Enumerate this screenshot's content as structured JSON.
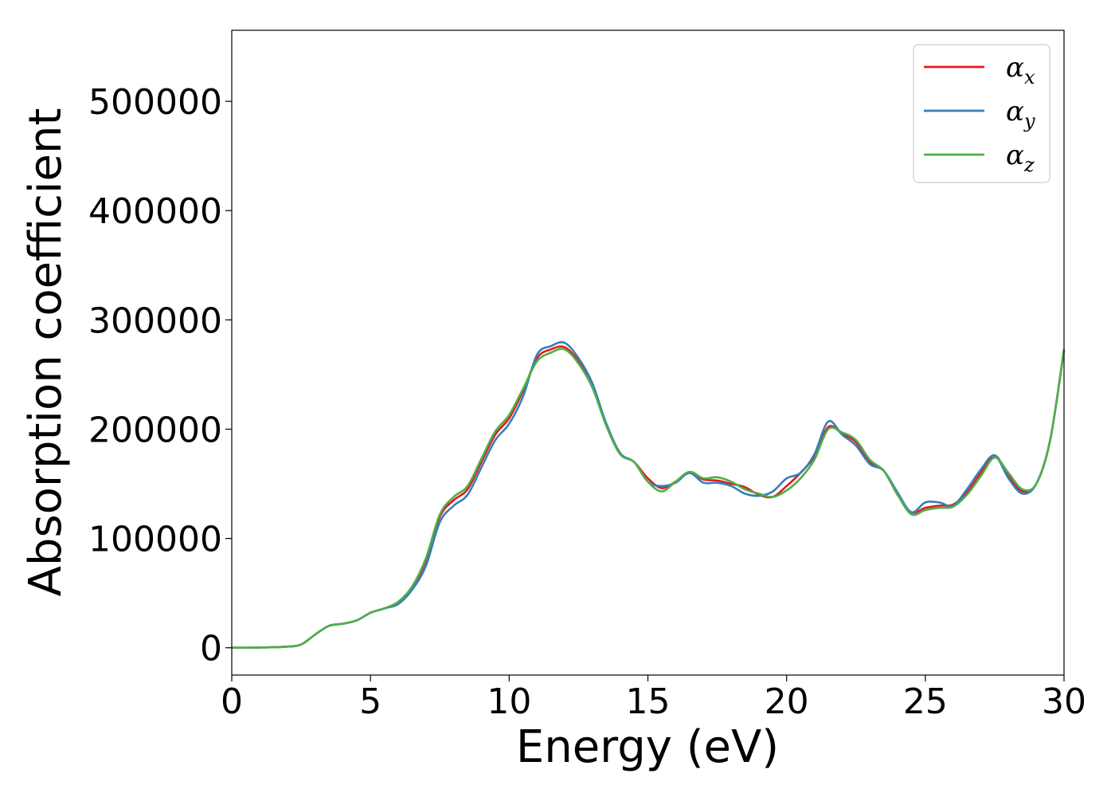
{
  "chart_data": {
    "type": "line",
    "xlabel": "Energy (eV)",
    "ylabel": "Absorption coefficient",
    "xlim": [
      0,
      30
    ],
    "ylim": [
      -25000,
      565000
    ],
    "xticks": [
      0,
      5,
      10,
      15,
      20,
      25,
      30
    ],
    "yticks": [
      0,
      100000,
      200000,
      300000,
      400000,
      500000
    ],
    "grid": false,
    "legend_position": "top-right",
    "x": [
      0,
      1,
      2,
      2.5,
      3,
      3.5,
      4,
      4.5,
      5,
      5.5,
      6,
      6.5,
      7,
      7.5,
      8,
      8.5,
      9,
      9.5,
      10,
      10.5,
      11,
      11.5,
      12,
      12.5,
      13,
      13.5,
      14,
      14.5,
      15,
      15.5,
      16,
      16.5,
      17,
      17.5,
      18,
      18.5,
      19,
      19.5,
      20,
      20.5,
      21,
      21.5,
      22,
      22.5,
      23,
      23.5,
      24,
      24.5,
      25,
      25.5,
      26,
      26.5,
      27,
      27.5,
      28,
      28.5,
      29,
      29.5,
      30
    ],
    "series": [
      {
        "name": "α",
        "subscript": "x",
        "color": "#e41a1c",
        "values": [
          0,
          200,
          1000,
          3000,
          12000,
          20000,
          22000,
          25000,
          32000,
          36000,
          42000,
          55000,
          80000,
          120000,
          135000,
          145000,
          170000,
          195000,
          210000,
          235000,
          265000,
          273000,
          275000,
          262000,
          240000,
          205000,
          178000,
          170000,
          155000,
          146000,
          152000,
          160000,
          154000,
          153000,
          150000,
          147000,
          140000,
          138000,
          148000,
          160000,
          175000,
          202000,
          196000,
          188000,
          170000,
          162000,
          140000,
          124000,
          128000,
          130000,
          131000,
          142000,
          160000,
          176000,
          157000,
          143000,
          150000,
          190000,
          273000
        ]
      },
      {
        "name": "α",
        "subscript": "y",
        "color": "#377eb8",
        "values": [
          0,
          200,
          1000,
          3000,
          12000,
          20000,
          22000,
          25000,
          32000,
          36000,
          40000,
          53000,
          75000,
          115000,
          130000,
          140000,
          165000,
          190000,
          205000,
          230000,
          268000,
          276000,
          279000,
          265000,
          242000,
          205000,
          178000,
          170000,
          152000,
          148000,
          151000,
          160000,
          151000,
          151000,
          148000,
          141000,
          139000,
          143000,
          155000,
          160000,
          177000,
          207000,
          195000,
          185000,
          168000,
          162000,
          142000,
          124000,
          133000,
          133000,
          130000,
          145000,
          163000,
          176000,
          155000,
          141000,
          150000,
          190000,
          273000
        ]
      },
      {
        "name": "α",
        "subscript": "z",
        "color": "#4daf4a",
        "values": [
          0,
          200,
          1000,
          3000,
          12000,
          20000,
          22000,
          25000,
          32000,
          36000,
          42000,
          56000,
          82000,
          122000,
          138000,
          148000,
          173000,
          198000,
          213000,
          237000,
          262000,
          270000,
          273000,
          260000,
          238000,
          203000,
          177000,
          170000,
          152000,
          143000,
          152000,
          161000,
          155000,
          156000,
          152000,
          145000,
          141000,
          138000,
          144000,
          155000,
          172000,
          200000,
          197000,
          190000,
          172000,
          162000,
          140000,
          122000,
          126000,
          128000,
          129000,
          140000,
          157000,
          174000,
          160000,
          145000,
          150000,
          190000,
          273000
        ]
      }
    ]
  }
}
